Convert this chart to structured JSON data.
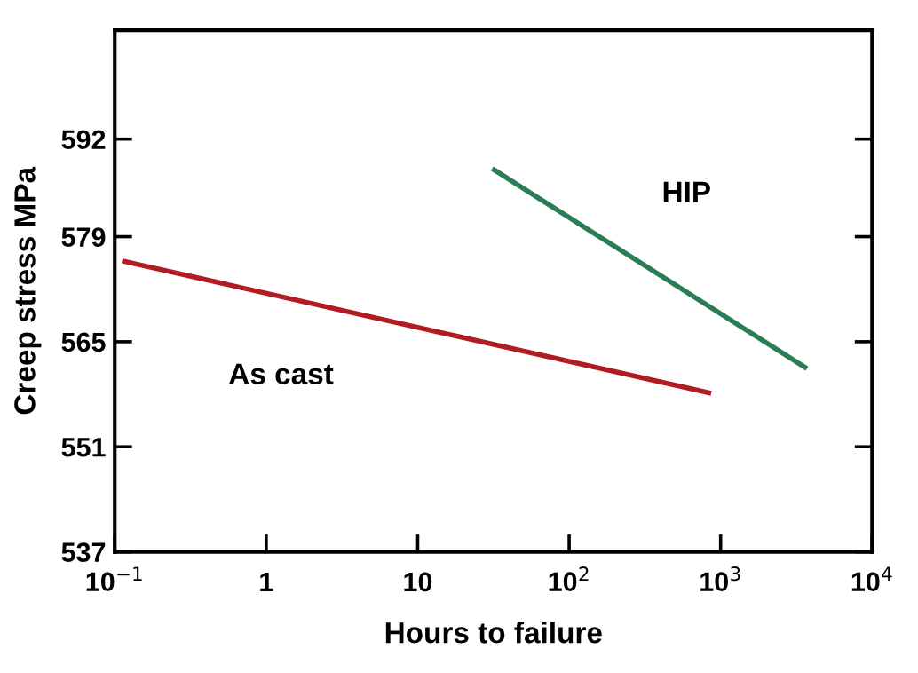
{
  "chart_data": {
    "type": "line",
    "xlabel": "Hours to failure",
    "ylabel": "Creep stress MPa",
    "log": "x",
    "xlim": [
      0.1,
      10000
    ],
    "xticks": [
      {
        "value": 0.1,
        "label": "10$^{−1}$"
      },
      1,
      10,
      {
        "value": 100,
        "label": "10$^{2}$"
      },
      {
        "value": 1000,
        "label": "10$^{3}$"
      },
      {
        "value": 10000,
        "label": "10$^{4}$"
      }
    ],
    "ylim": [
      537,
      606.5
    ],
    "yticks": [
      537,
      551,
      565,
      579,
      592
    ],
    "grid": false,
    "legend": false,
    "marker": "none",
    "line_style": "solid",
    "series": [
      {
        "name": "As cast",
        "color": "#b01c24",
        "x": [
          0.116,
          835
        ],
        "values": [
          575.7,
          558.2
        ]
      },
      {
        "name": "HIP",
        "color": "#2a7d55",
        "x": [
          32,
          3600
        ],
        "values": [
          587.9,
          561.6
        ]
      }
    ]
  }
}
